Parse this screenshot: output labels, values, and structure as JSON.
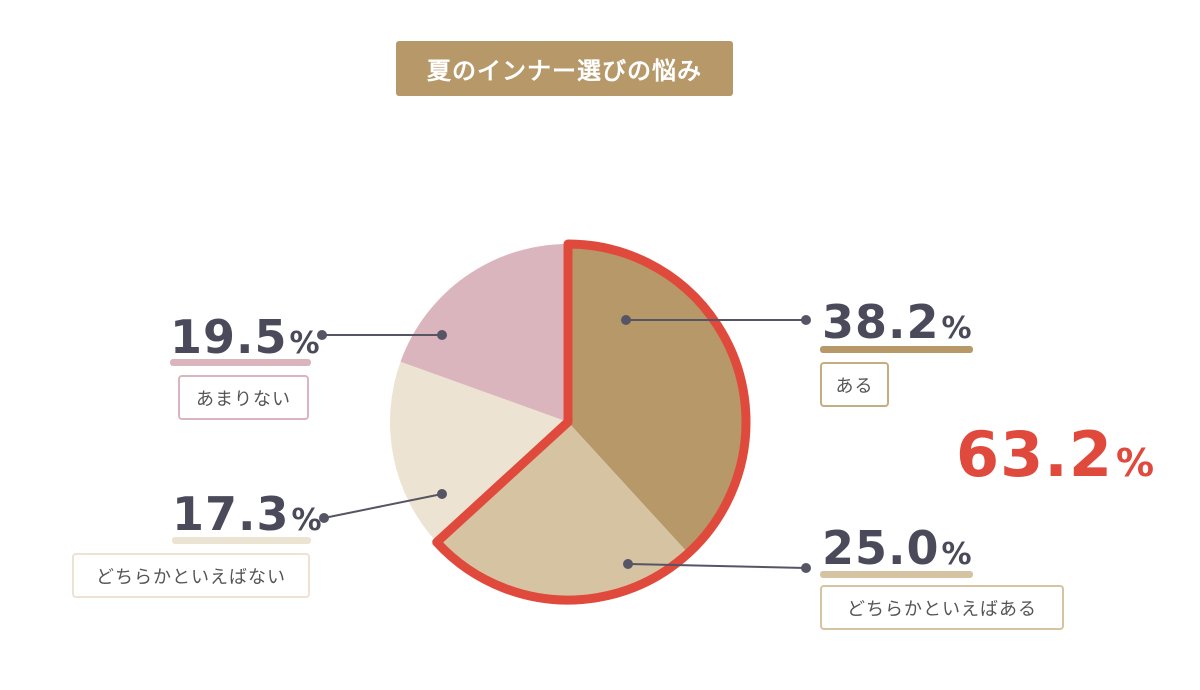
{
  "title": "夏のインナー選びの悩み",
  "total": {
    "value": "63.2",
    "symbol": "%"
  },
  "colors": {
    "aru": "#b79868",
    "dochiraka_aru": "#d6c3a2",
    "dochiraka_nai": "#ede3d2",
    "amari_nai": "#dbb5bd",
    "highlight": "#e04a3c",
    "leader": "#555566"
  },
  "chart_data": {
    "type": "pie",
    "title": "夏のインナー選びの悩み",
    "unit": "%",
    "slices": [
      {
        "label": "ある",
        "value": 38.2,
        "value_text": "38.2",
        "color": "#b79868",
        "highlighted": true
      },
      {
        "label": "どちらかといえばある",
        "value": 25.0,
        "value_text": "25.0",
        "color": "#d6c3a2",
        "highlighted": true
      },
      {
        "label": "どちらかといえばない",
        "value": 17.3,
        "value_text": "17.3",
        "color": "#ede3d2",
        "highlighted": false
      },
      {
        "label": "あまりない",
        "value": 19.5,
        "value_text": "19.5",
        "color": "#dbb5bd",
        "highlighted": false
      }
    ],
    "highlight_total": 63.2
  }
}
